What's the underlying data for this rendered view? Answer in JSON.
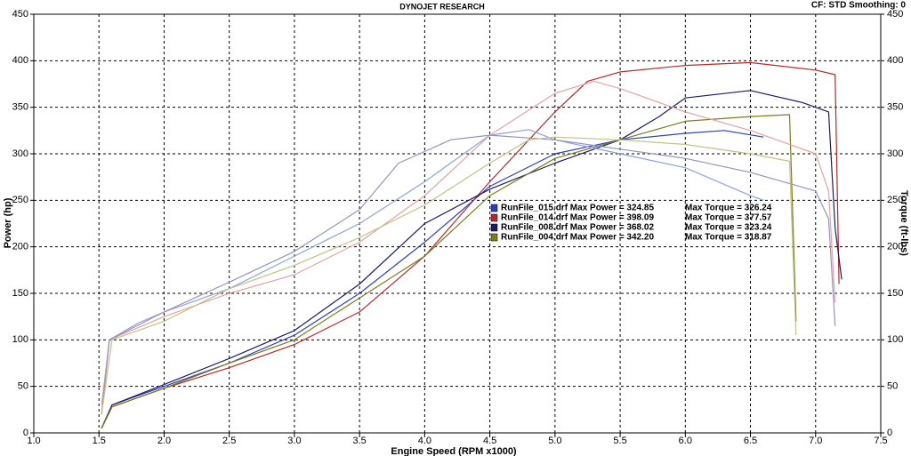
{
  "chart_data": {
    "type": "line",
    "title": "DYNOJET RESEARCH",
    "subtitle": "CF: STD  Smoothing: 0",
    "x_label": "Engine Speed (RPM x1000)",
    "y_label": "Power (hp)",
    "y2_label": "Torque (ft-lbs)",
    "xlim": [
      1.0,
      7.5
    ],
    "xticks": [
      {
        "value": 1.0,
        "label": "1.0"
      },
      {
        "value": 1.5,
        "label": "1.5"
      },
      {
        "value": 2.0,
        "label": "2.0"
      },
      {
        "value": 2.5,
        "label": "2.5"
      },
      {
        "value": 3.0,
        "label": "3.0"
      },
      {
        "value": 3.5,
        "label": "3.5"
      },
      {
        "value": 4.0,
        "label": "4.0"
      },
      {
        "value": 4.5,
        "label": "4.5"
      },
      {
        "value": 5.0,
        "label": "5.0"
      },
      {
        "value": 5.5,
        "label": "5.5"
      },
      {
        "value": 6.0,
        "label": "6.0"
      },
      {
        "value": 6.5,
        "label": "6.5"
      },
      {
        "value": 7.0,
        "label": "7.0"
      },
      {
        "value": 7.5,
        "label": "7.5"
      }
    ],
    "ylim": [
      0,
      450
    ],
    "yticks": [
      0,
      50,
      100,
      150,
      200,
      250,
      300,
      350,
      400,
      450
    ],
    "y2lim": [
      0,
      450
    ],
    "y2ticks": [
      0,
      50,
      100,
      150,
      200,
      250,
      300,
      350,
      400,
      450
    ],
    "grid": true,
    "series": [
      {
        "name": "RunFile_015.drf Max Power = 324.85",
        "color": "#2b3fc4",
        "x": [
          1.52,
          1.6,
          1.8,
          2.0,
          2.5,
          3.0,
          3.5,
          4.0,
          4.5,
          5.0,
          5.5,
          6.0,
          6.3,
          6.6
        ],
        "values": [
          5,
          30,
          40,
          50,
          75,
          105,
          150,
          205,
          265,
          300,
          315,
          322,
          325,
          318
        ]
      },
      {
        "name": "RunFile_014.drf Max Power = 398.09",
        "color": "#b8282a",
        "x": [
          1.52,
          1.6,
          2.0,
          2.5,
          3.0,
          3.5,
          4.0,
          4.5,
          5.0,
          5.25,
          5.5,
          6.0,
          6.5,
          7.0,
          7.15,
          7.18
        ],
        "values": [
          5,
          28,
          48,
          70,
          95,
          130,
          190,
          270,
          345,
          378,
          388,
          395,
          398,
          390,
          385,
          160
        ]
      },
      {
        "name": "RunFile_008.drf Max Power = 368.02",
        "color": "#1c1c66",
        "x": [
          1.52,
          1.6,
          2.0,
          2.5,
          3.0,
          3.5,
          4.0,
          4.5,
          5.0,
          5.5,
          5.8,
          6.0,
          6.5,
          6.9,
          7.1,
          7.15,
          7.2
        ],
        "values": [
          5,
          30,
          52,
          80,
          110,
          160,
          225,
          262,
          290,
          315,
          340,
          360,
          368,
          355,
          345,
          220,
          165
        ]
      },
      {
        "name": "RunFile_004.drf Max Power = 342.20",
        "color": "#7d7d1c",
        "x": [
          1.52,
          1.6,
          2.0,
          2.5,
          3.0,
          3.5,
          4.0,
          4.5,
          5.0,
          5.5,
          6.0,
          6.5,
          6.8,
          6.85
        ],
        "values": [
          5,
          28,
          48,
          75,
          100,
          145,
          190,
          255,
          295,
          315,
          335,
          340,
          342,
          120
        ]
      },
      {
        "name": "Max Torque = 326.24",
        "color": "#8fa2dc",
        "axis": "y2",
        "x": [
          1.52,
          1.58,
          1.8,
          2.0,
          2.5,
          3.0,
          3.5,
          4.0,
          4.3,
          4.5,
          4.8,
          5.0,
          5.5,
          6.0,
          6.5,
          6.6
        ],
        "values": [
          20,
          100,
          118,
          130,
          155,
          190,
          225,
          270,
          300,
          320,
          326,
          315,
          300,
          285,
          255,
          250
        ]
      },
      {
        "name": "Max Torque = 377.57",
        "color": "#e6a2a2",
        "axis": "y2",
        "x": [
          1.52,
          1.58,
          2.0,
          2.5,
          3.0,
          3.5,
          4.0,
          4.5,
          5.0,
          5.3,
          5.5,
          6.0,
          6.5,
          7.0,
          7.1,
          7.15
        ],
        "values": [
          30,
          100,
          125,
          150,
          170,
          205,
          255,
          320,
          365,
          378,
          370,
          345,
          325,
          300,
          260,
          140
        ]
      },
      {
        "name": "Max Torque = 323.24",
        "color": "#9494bc",
        "axis": "y2",
        "x": [
          1.52,
          1.58,
          2.0,
          2.5,
          3.0,
          3.5,
          3.8,
          4.2,
          4.5,
          5.0,
          5.5,
          6.0,
          6.5,
          7.0,
          7.1,
          7.15
        ],
        "values": [
          20,
          100,
          130,
          162,
          195,
          240,
          290,
          315,
          320,
          315,
          305,
          295,
          280,
          260,
          230,
          115
        ]
      },
      {
        "name": "Max Torque = 318.87",
        "color": "#c2c282",
        "axis": "y2",
        "x": [
          1.52,
          1.6,
          2.0,
          2.5,
          3.0,
          3.5,
          4.0,
          4.5,
          4.8,
          5.0,
          5.5,
          6.0,
          6.5,
          6.8,
          6.85
        ],
        "values": [
          20,
          100,
          120,
          155,
          180,
          210,
          245,
          290,
          315,
          318,
          315,
          310,
          300,
          292,
          105
        ]
      }
    ]
  }
}
